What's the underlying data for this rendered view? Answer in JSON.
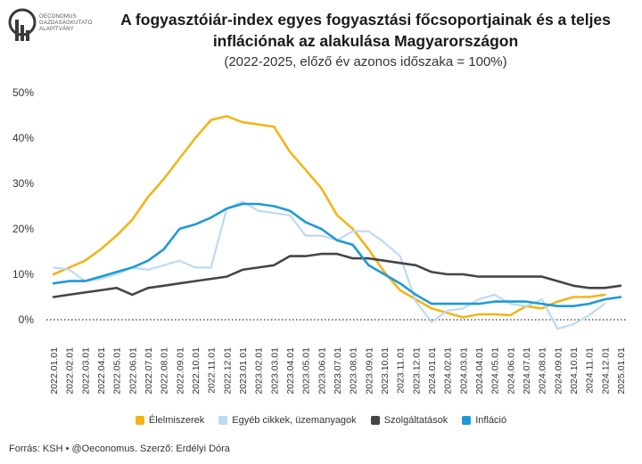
{
  "header": {
    "logo_lines": [
      "OECONOMUS",
      "GAZDASÁGKUTATÓ",
      "ALAPÍTVÁNY"
    ],
    "title_line1": "A fogyasztóiár-index egyes fogyasztási főcsoportjainak és a teljes",
    "title_line2": "inflációnak az alakulása Magyarországon",
    "subtitle": "(2022-2025, előző év azonos időszaka = 100%)"
  },
  "footer": {
    "source": "Forrás: KSH • @Oeconomus. Szerző: Erdélyi Dóra"
  },
  "chart_data": {
    "type": "line",
    "ylim": [
      -5,
      50
    ],
    "y_ticks": [
      0,
      10,
      20,
      30,
      40,
      50
    ],
    "y_tick_labels": [
      "0%",
      "10%",
      "20%",
      "30%",
      "40%",
      "50%"
    ],
    "zero_line": "dotted",
    "grid": false,
    "legend_position": "bottom",
    "x": [
      "2022.01.01",
      "2022.02.01",
      "2022.03.01",
      "2022.04.01",
      "2022.05.01",
      "2022.06.01",
      "2022.07.01",
      "2022.08.01",
      "2022.09.01",
      "2022.10.01",
      "2022.11.01",
      "2022.12.01",
      "2023.01.01",
      "2023.02.01",
      "2023.03.01",
      "2023.04.01",
      "2023.05.01",
      "2023.06.01",
      "2023.07.01",
      "2023.08.01",
      "2023.09.01",
      "2023.10.01",
      "2023.11.01",
      "2023.12.01",
      "2024.01.01",
      "2024.02.01",
      "2024.03.01",
      "2024.04.01",
      "2024.05.01",
      "2024.06.01",
      "2024.07.01",
      "2024.08.01",
      "2024.09.01",
      "2024.10.01",
      "2024.11.01",
      "2024.12.01",
      "2025.01.01"
    ],
    "series": [
      {
        "name": "Élelmiszerek",
        "color": "#F2B519",
        "values": [
          10.0,
          11.5,
          13.0,
          15.5,
          18.5,
          22.0,
          27.0,
          31.0,
          35.5,
          40.0,
          44.0,
          44.8,
          43.5,
          43.0,
          42.5,
          37.0,
          33.0,
          29.0,
          23.0,
          20.0,
          15.5,
          10.5,
          6.5,
          4.5,
          2.5,
          1.5,
          0.5,
          1.2,
          1.2,
          1.0,
          3.0,
          2.5,
          4.0,
          5.0,
          5.0,
          5.5,
          null
        ]
      },
      {
        "name": "Egyéb cikkek, üzemanyagok",
        "color": "#BED9F2",
        "values": [
          11.5,
          11.0,
          8.5,
          9.0,
          10.0,
          11.5,
          11.0,
          12.0,
          13.0,
          11.5,
          11.5,
          24.5,
          26.0,
          24.0,
          23.5,
          23.0,
          18.5,
          18.5,
          17.5,
          19.5,
          19.5,
          17.0,
          14.0,
          4.0,
          -0.5,
          2.0,
          2.5,
          4.5,
          5.5,
          3.5,
          3.0,
          4.5,
          -2.0,
          -1.0,
          1.0,
          3.5,
          null
        ]
      },
      {
        "name": "Szolgáltatások",
        "color": "#454545",
        "values": [
          5.0,
          5.5,
          6.0,
          6.5,
          7.0,
          5.5,
          7.0,
          7.5,
          8.0,
          8.5,
          9.0,
          9.5,
          11.0,
          11.5,
          12.0,
          14.0,
          14.0,
          14.5,
          14.5,
          13.5,
          13.5,
          13.0,
          12.5,
          12.0,
          10.5,
          10.0,
          10.0,
          9.5,
          9.5,
          9.5,
          9.5,
          9.5,
          8.5,
          7.5,
          7.0,
          7.0,
          7.5
        ]
      },
      {
        "name": "Infláció",
        "color": "#1E9AD6",
        "values": [
          8.0,
          8.5,
          8.5,
          9.5,
          10.5,
          11.5,
          13.0,
          15.5,
          20.0,
          21.0,
          22.5,
          24.5,
          25.5,
          25.5,
          25.0,
          24.0,
          21.5,
          20.0,
          17.5,
          16.5,
          12.0,
          10.0,
          8.0,
          5.5,
          3.5,
          3.5,
          3.5,
          3.5,
          4.0,
          4.0,
          4.0,
          3.5,
          3.0,
          3.0,
          3.5,
          4.5,
          5.0
        ]
      }
    ]
  }
}
